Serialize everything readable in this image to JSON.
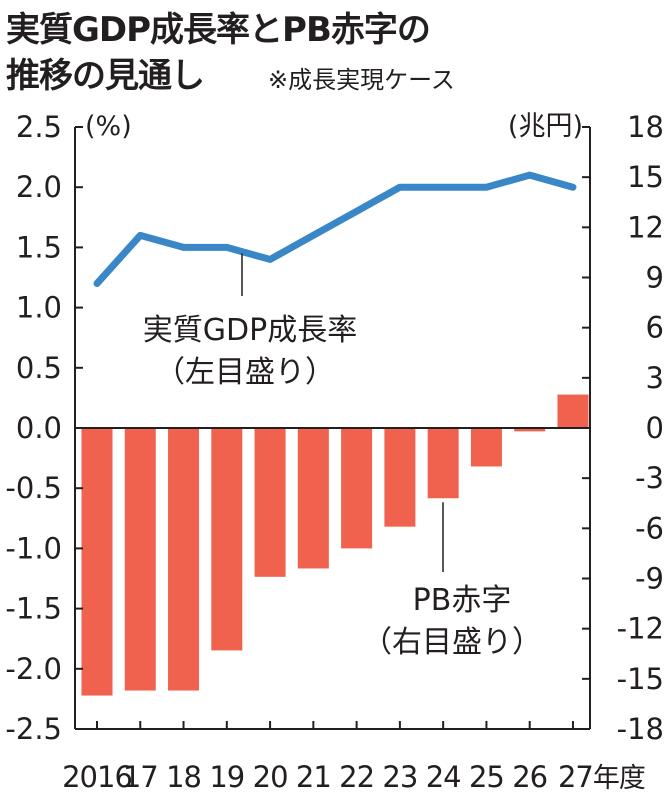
{
  "chart_data": {
    "type": "bar+line",
    "title": "実質GDP成長率とPB赤字の",
    "title_line2": "推移の見通し",
    "note": "※成長実現ケース",
    "categories": [
      "2016",
      "17",
      "18",
      "19",
      "20",
      "21",
      "22",
      "23",
      "24",
      "25",
      "26",
      "27"
    ],
    "x_suffix": "年度",
    "left_axis": {
      "unit": "(%)",
      "ylim": [
        -2.5,
        2.5
      ],
      "ticks": [
        "2.5",
        "2.0",
        "1.5",
        "1.0",
        "0.5",
        "0.0",
        "-0.5",
        "-1.0",
        "-1.5",
        "-2.0",
        "-2.5"
      ],
      "tick_values": [
        2.5,
        2.0,
        1.5,
        1.0,
        0.5,
        0.0,
        -0.5,
        -1.0,
        -1.5,
        -2.0,
        -2.5
      ]
    },
    "right_axis": {
      "unit": "(兆円)",
      "ylim": [
        -18,
        18
      ],
      "ticks": [
        "18",
        "15",
        "12",
        "9",
        "6",
        "3",
        "0",
        "-3",
        "-6",
        "-9",
        "-12",
        "-15",
        "-18"
      ],
      "tick_values": [
        18,
        15,
        12,
        9,
        6,
        3,
        0,
        -3,
        -6,
        -9,
        -12,
        -15,
        -18
      ]
    },
    "series": [
      {
        "name": "実質GDP成長率",
        "sub": "（左目盛り）",
        "type": "line",
        "axis": "left",
        "color": "#3a87c8",
        "values": [
          1.2,
          1.6,
          1.5,
          1.5,
          1.4,
          1.6,
          1.8,
          2.0,
          2.0,
          2.0,
          2.1,
          2.0
        ]
      },
      {
        "name": "PB赤字",
        "sub": "（右目盛り）",
        "type": "bar",
        "axis": "right",
        "color": "#f0624d",
        "values": [
          -16.0,
          -15.7,
          -15.7,
          -13.3,
          -8.9,
          -8.4,
          -7.2,
          -5.9,
          -4.2,
          -2.3,
          -0.2,
          2.0
        ]
      }
    ]
  }
}
